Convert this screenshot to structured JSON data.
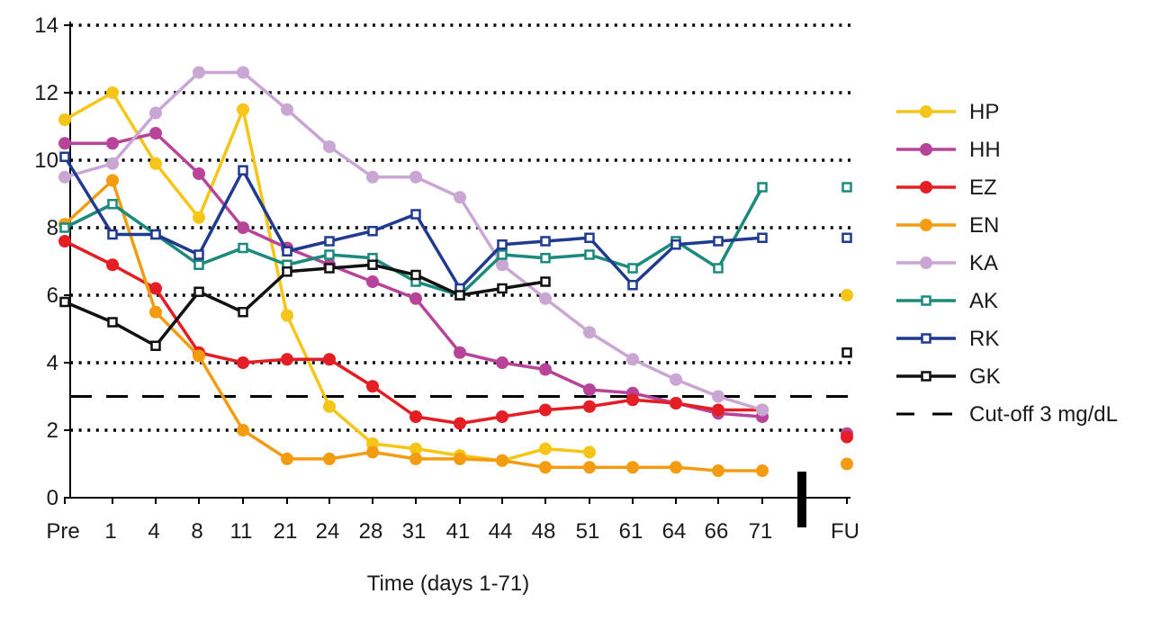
{
  "chart_data": {
    "type": "line",
    "title": "",
    "xlabel": "Time (days 1-71)",
    "ylabel": "",
    "ylim": [
      0,
      14
    ],
    "yticks": [
      0,
      2,
      4,
      6,
      8,
      10,
      12,
      14
    ],
    "categories": [
      "Pre",
      "1",
      "4",
      "8",
      "11",
      "21",
      "24",
      "28",
      "31",
      "41",
      "44",
      "48",
      "51",
      "61",
      "64",
      "66",
      "71",
      "FU"
    ],
    "grid": "dotted horizontal lines at 2, 4, 6, 8, 10, 12, 14",
    "axis_break": "between 71 and FU",
    "legend_position": "right",
    "cutoff": {
      "name": "Cut-off 3 mg/dL",
      "value": 3,
      "color": "#000000",
      "style": "dashed"
    },
    "series": [
      {
        "name": "HP",
        "color": "#F5C518",
        "marker": "circle",
        "values": [
          11.2,
          12.0,
          9.9,
          8.3,
          11.5,
          5.4,
          2.7,
          1.6,
          1.45,
          1.25,
          1.1,
          1.45,
          1.35,
          null,
          null,
          null,
          null,
          null
        ],
        "fu": 6.0
      },
      {
        "name": "HH",
        "color": "#B8449A",
        "marker": "circle",
        "values": [
          10.5,
          10.5,
          10.8,
          9.6,
          8.0,
          7.4,
          6.9,
          6.4,
          5.9,
          4.3,
          4.0,
          3.8,
          3.2,
          3.1,
          2.8,
          2.5,
          2.4,
          null
        ],
        "fu": 1.9
      },
      {
        "name": "EZ",
        "color": "#E31E24",
        "marker": "circle",
        "values": [
          7.6,
          6.9,
          6.2,
          4.3,
          4.0,
          4.1,
          4.1,
          3.3,
          2.4,
          2.2,
          2.4,
          2.6,
          2.7,
          2.9,
          2.8,
          2.6,
          2.6,
          null
        ],
        "fu": 1.8
      },
      {
        "name": "EN",
        "color": "#F39C12",
        "marker": "circle",
        "values": [
          8.1,
          9.4,
          5.5,
          4.2,
          2.0,
          1.15,
          1.15,
          1.35,
          1.15,
          1.15,
          1.1,
          0.9,
          0.9,
          0.9,
          0.9,
          0.8,
          0.8,
          null
        ],
        "fu": 1.0
      },
      {
        "name": "KA",
        "color": "#C9A6D3",
        "marker": "circle",
        "values": [
          9.5,
          9.9,
          11.4,
          12.6,
          12.6,
          11.5,
          10.4,
          9.5,
          9.5,
          8.9,
          6.9,
          5.9,
          4.9,
          4.1,
          3.5,
          3.0,
          2.6,
          null
        ],
        "fu": null
      },
      {
        "name": "AK",
        "color": "#1B8A7C",
        "marker": "square",
        "values": [
          8.0,
          8.7,
          7.8,
          6.9,
          7.4,
          6.9,
          7.2,
          7.1,
          6.4,
          6.0,
          7.2,
          7.1,
          7.2,
          6.8,
          7.6,
          6.8,
          9.2,
          null
        ],
        "fu": 9.2
      },
      {
        "name": "RK",
        "color": "#1F3A8F",
        "marker": "square",
        "values": [
          10.1,
          7.8,
          7.8,
          7.2,
          9.7,
          7.3,
          7.6,
          7.9,
          8.4,
          6.2,
          7.5,
          7.6,
          7.7,
          6.3,
          7.5,
          7.6,
          7.7,
          null
        ],
        "fu": 7.7
      },
      {
        "name": "GK",
        "color": "#111111",
        "marker": "square",
        "values": [
          5.8,
          5.2,
          4.5,
          6.1,
          5.5,
          6.7,
          6.8,
          6.9,
          6.6,
          6.0,
          6.2,
          6.4,
          null,
          null,
          null,
          null,
          null,
          null
        ],
        "fu": 4.3
      }
    ]
  }
}
